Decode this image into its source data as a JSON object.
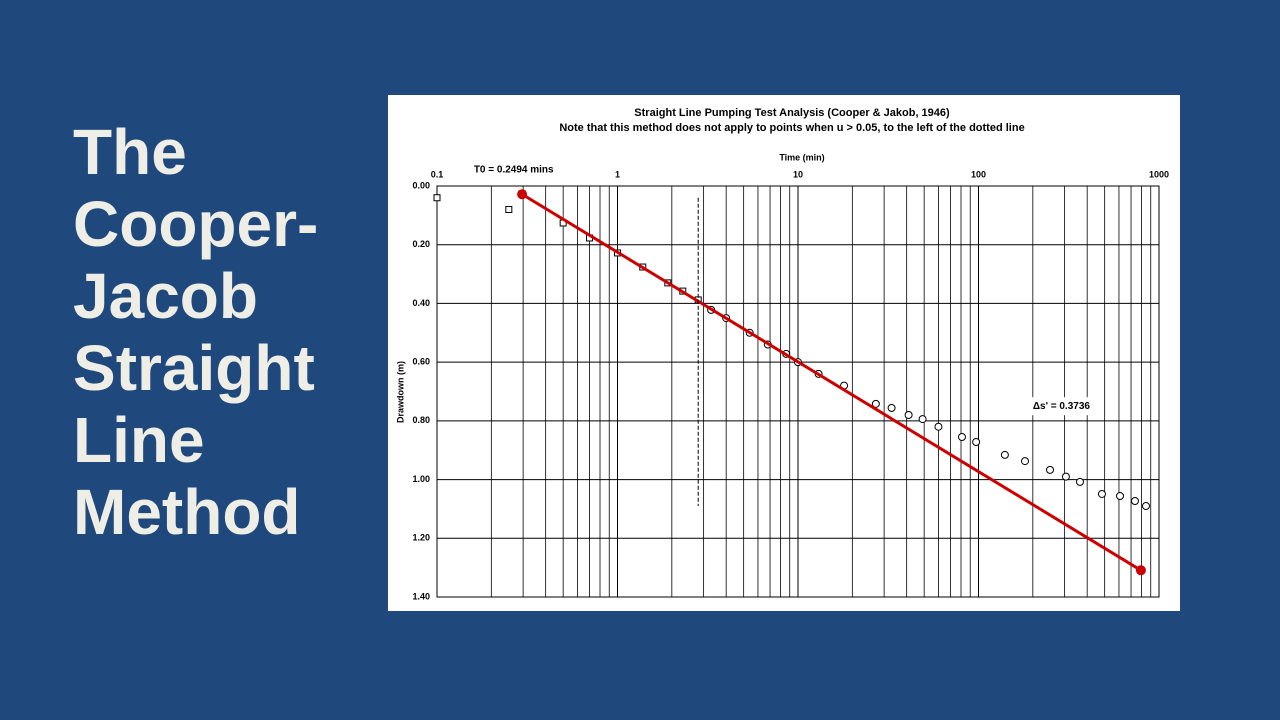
{
  "slide": {
    "title": "The Cooper-Jacob Straight Line Method"
  },
  "chart_data": {
    "type": "scatter",
    "title": "Straight Line Pumping Test Analysis (Cooper & Jakob, 1946)",
    "subtitle": "Note that this method does not apply to points when u > 0.05, to the left of the dotted line",
    "x_label": "Time (min)",
    "y_label": "Drawdown (m)",
    "x_log": true,
    "y_inverted": true,
    "x_axis_position": "top",
    "grid": "major-and-minor",
    "xlim": [
      0.1,
      1000
    ],
    "xticks": [
      0.1,
      1,
      10,
      100,
      1000
    ],
    "ylim": [
      0,
      1.4
    ],
    "yticks": [
      {
        "value": 0,
        "label": "0.00"
      },
      {
        "value": 0.2,
        "label": "0.20"
      },
      {
        "value": 0.4,
        "label": "0.40"
      },
      {
        "value": 0.6,
        "label": "0.60"
      },
      {
        "value": 0.8,
        "label": "0.80"
      },
      {
        "value": 1.0,
        "label": "1.00"
      },
      {
        "value": 1.2,
        "label": "1.20"
      },
      {
        "value": 1.4,
        "label": "1.40"
      }
    ],
    "series": [
      {
        "marker": "square",
        "color": "#000000",
        "x": [
          0.1,
          0.25,
          0.5,
          0.7,
          1.0,
          1.38,
          1.9,
          2.3,
          2.8
        ],
        "values": [
          0.04,
          0.08,
          0.126,
          0.177,
          0.228,
          0.276,
          0.33,
          0.358,
          0.388
        ]
      },
      {
        "marker": "circle",
        "color": "#000000",
        "x": [
          3.3,
          4.0,
          5.4,
          6.8,
          8.6,
          10,
          13,
          18,
          27,
          33,
          41,
          49,
          60,
          81,
          97,
          140,
          181,
          249,
          305,
          365,
          483,
          608,
          736,
          847
        ],
        "values": [
          0.422,
          0.45,
          0.5,
          0.54,
          0.572,
          0.6,
          0.64,
          0.68,
          0.742,
          0.756,
          0.78,
          0.794,
          0.82,
          0.855,
          0.872,
          0.916,
          0.937,
          0.967,
          0.99,
          1.008,
          1.049,
          1.056,
          1.073,
          1.09
        ]
      },
      {
        "marker": "endpoints",
        "line": "solid",
        "color": "#cc0000",
        "x": [
          0.296,
          794
        ],
        "values": [
          0.028,
          1.309
        ]
      },
      {
        "marker": "none",
        "line": "dashed",
        "color": "#000000",
        "x": [
          2.8,
          2.8
        ],
        "values": [
          0.04,
          1.09
        ]
      }
    ],
    "annotations": [
      {
        "text": "T0 = 0.2494 mins",
        "x": 0.16,
        "y": -0.055
      },
      {
        "text": "Δs' = 0.3736",
        "x": 200,
        "y": 0.75
      }
    ]
  }
}
